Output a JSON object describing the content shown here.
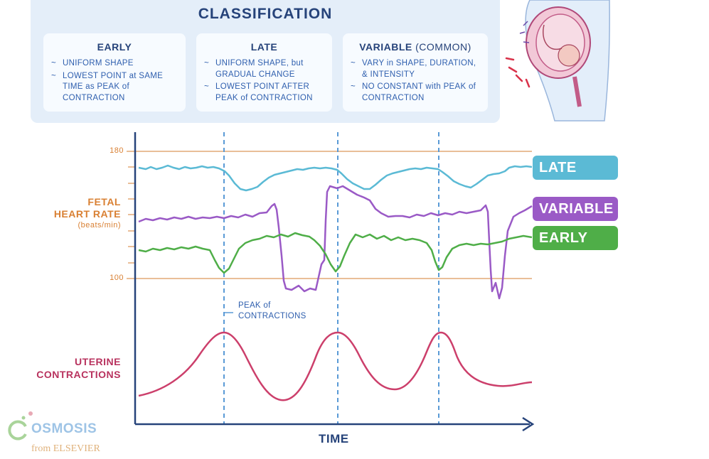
{
  "classification": {
    "title": "CLASSIFICATION",
    "cards": [
      {
        "title": "EARLY",
        "title_sub": "",
        "items": [
          "UNIFORM SHAPE",
          "LOWEST POINT at SAME TIME as PEAK of CONTRACTION"
        ]
      },
      {
        "title": "LATE",
        "title_sub": "",
        "items": [
          "UNIFORM SHAPE, but GRADUAL CHANGE",
          "LOWEST POINT AFTER PEAK of CONTRACTION"
        ]
      },
      {
        "title": "VARIABLE",
        "title_sub": "(COMMON)",
        "items": [
          "VARY in SHAPE, DURATION, & INTENSITY",
          "NO CONSTANT with PEAK of CONTRACTION"
        ]
      }
    ]
  },
  "chart": {
    "y_label_line1": "FETAL",
    "y_label_line2": "HEART RATE",
    "y_label_unit": "(beats/min)",
    "tick_180": "180",
    "tick_100": "100",
    "annotation": "PEAK of CONTRACTIONS",
    "uterine_label": "UTERINE CONTRACTIONS",
    "x_label": "TIME"
  },
  "legend": {
    "late": "LATE",
    "variable": "VARIABLE",
    "early": "EARLY"
  },
  "colors": {
    "late": "#5bbad5",
    "variable": "#9a5ac6",
    "early": "#4fae48",
    "uterine": "#cc3f6b",
    "reference": "#e2a876",
    "axis": "#26437a",
    "dashed": "#5a9ad6"
  },
  "logo": {
    "brand": "OSMOSIS",
    "sub": "from ELSEVIER"
  }
}
